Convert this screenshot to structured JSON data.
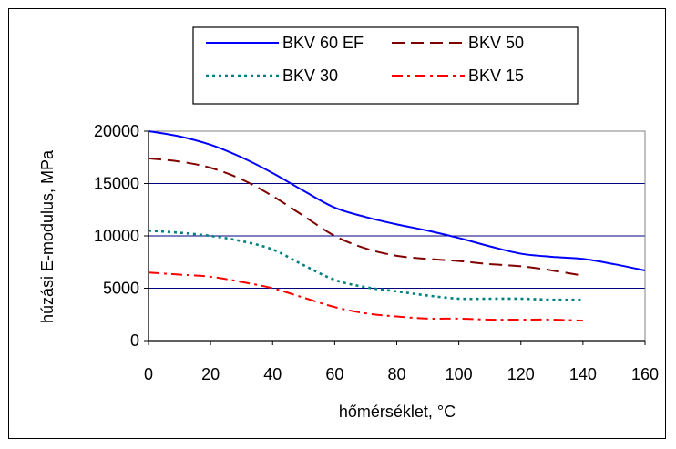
{
  "chart_data": {
    "type": "line",
    "title": "",
    "xlabel": "hőmérséklet, °C",
    "ylabel": "húzási E-modulus, MPa",
    "xlim": [
      0,
      160
    ],
    "ylim": [
      0,
      20000
    ],
    "x_ticks": [
      0,
      20,
      40,
      60,
      80,
      100,
      120,
      140,
      160
    ],
    "y_ticks": [
      0,
      5000,
      10000,
      15000,
      20000
    ],
    "x_tick_labels": [
      "0",
      "20",
      "40",
      "60",
      "80",
      "100",
      "120",
      "140",
      "160"
    ],
    "y_tick_labels": [
      "0",
      "5000",
      "10000",
      "15000",
      "20000"
    ],
    "grid": "horizontal",
    "legend_position": "top",
    "series": [
      {
        "name": "BKV 60 EF",
        "color": "#0000ff",
        "dash": "solid",
        "x": [
          0,
          10,
          20,
          30,
          40,
          50,
          60,
          70,
          80,
          90,
          100,
          110,
          120,
          130,
          140,
          150,
          160
        ],
        "y": [
          20000,
          19500,
          18700,
          17500,
          16000,
          14300,
          12700,
          11800,
          11100,
          10500,
          9800,
          9000,
          8300,
          8000,
          7800,
          7300,
          6700
        ]
      },
      {
        "name": "BKV 50",
        "color": "#800000",
        "dash": "long-dash",
        "x": [
          0,
          10,
          20,
          30,
          40,
          50,
          60,
          70,
          80,
          90,
          100,
          110,
          120,
          130,
          140
        ],
        "y": [
          17400,
          17100,
          16500,
          15400,
          13800,
          11900,
          10000,
          8800,
          8100,
          7800,
          7600,
          7300,
          7100,
          6700,
          6200
        ]
      },
      {
        "name": "BKV 30",
        "color": "#008080",
        "dash": "dotted",
        "x": [
          0,
          10,
          20,
          30,
          40,
          50,
          60,
          70,
          80,
          90,
          100,
          110,
          120,
          130,
          140
        ],
        "y": [
          10500,
          10300,
          10000,
          9500,
          8700,
          7200,
          5800,
          5100,
          4700,
          4300,
          4000,
          4000,
          4000,
          3900,
          3900
        ]
      },
      {
        "name": "BKV 15",
        "color": "#ff0000",
        "dash": "dash-dot",
        "x": [
          0,
          10,
          20,
          30,
          40,
          50,
          60,
          70,
          80,
          90,
          100,
          110,
          120,
          130,
          140
        ],
        "y": [
          6500,
          6300,
          6100,
          5600,
          5000,
          4100,
          3200,
          2600,
          2300,
          2100,
          2100,
          2000,
          2000,
          2000,
          1900
        ]
      }
    ]
  }
}
